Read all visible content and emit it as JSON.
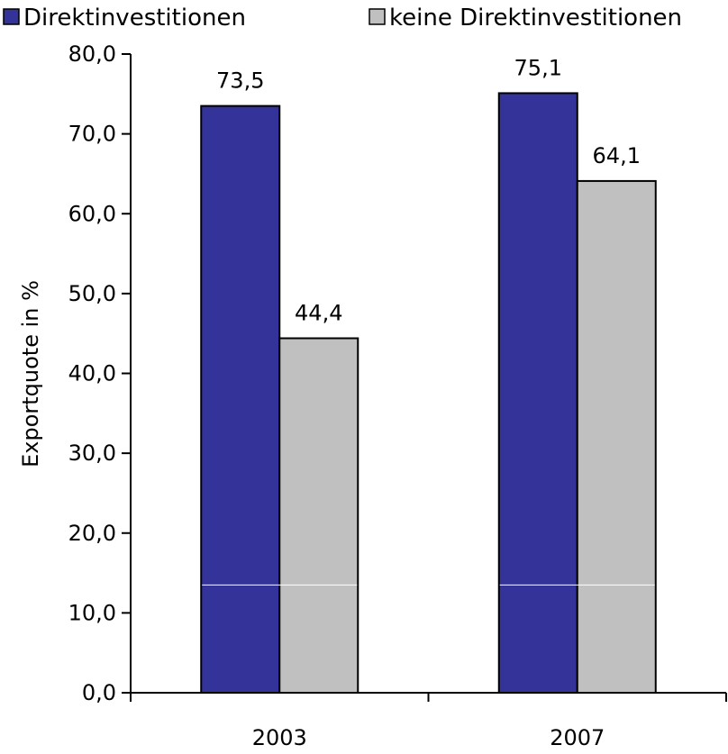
{
  "chart_data": {
    "type": "bar",
    "categories": [
      "2003",
      "2007"
    ],
    "series": [
      {
        "name": "Direktinvestitionen",
        "values": [
          73.5,
          75.1
        ],
        "value_labels": [
          "73,5",
          "75,1"
        ],
        "color": "#333399"
      },
      {
        "name": "keine Direktinvestitionen",
        "values": [
          44.4,
          64.1
        ],
        "value_labels": [
          "44,4",
          "64,1"
        ],
        "color": "#c0c0c0"
      }
    ],
    "title": "",
    "xlabel": "",
    "ylabel": "Exportquote in %",
    "ylim": [
      0,
      80
    ],
    "yticks": [
      0,
      10,
      20,
      30,
      40,
      50,
      60,
      70,
      80
    ],
    "ytick_labels": [
      "0,0",
      "10,0",
      "20,0",
      "30,0",
      "40,0",
      "50,0",
      "60,0",
      "70,0",
      "80,0"
    ],
    "grid": false,
    "legend_position": "top"
  }
}
